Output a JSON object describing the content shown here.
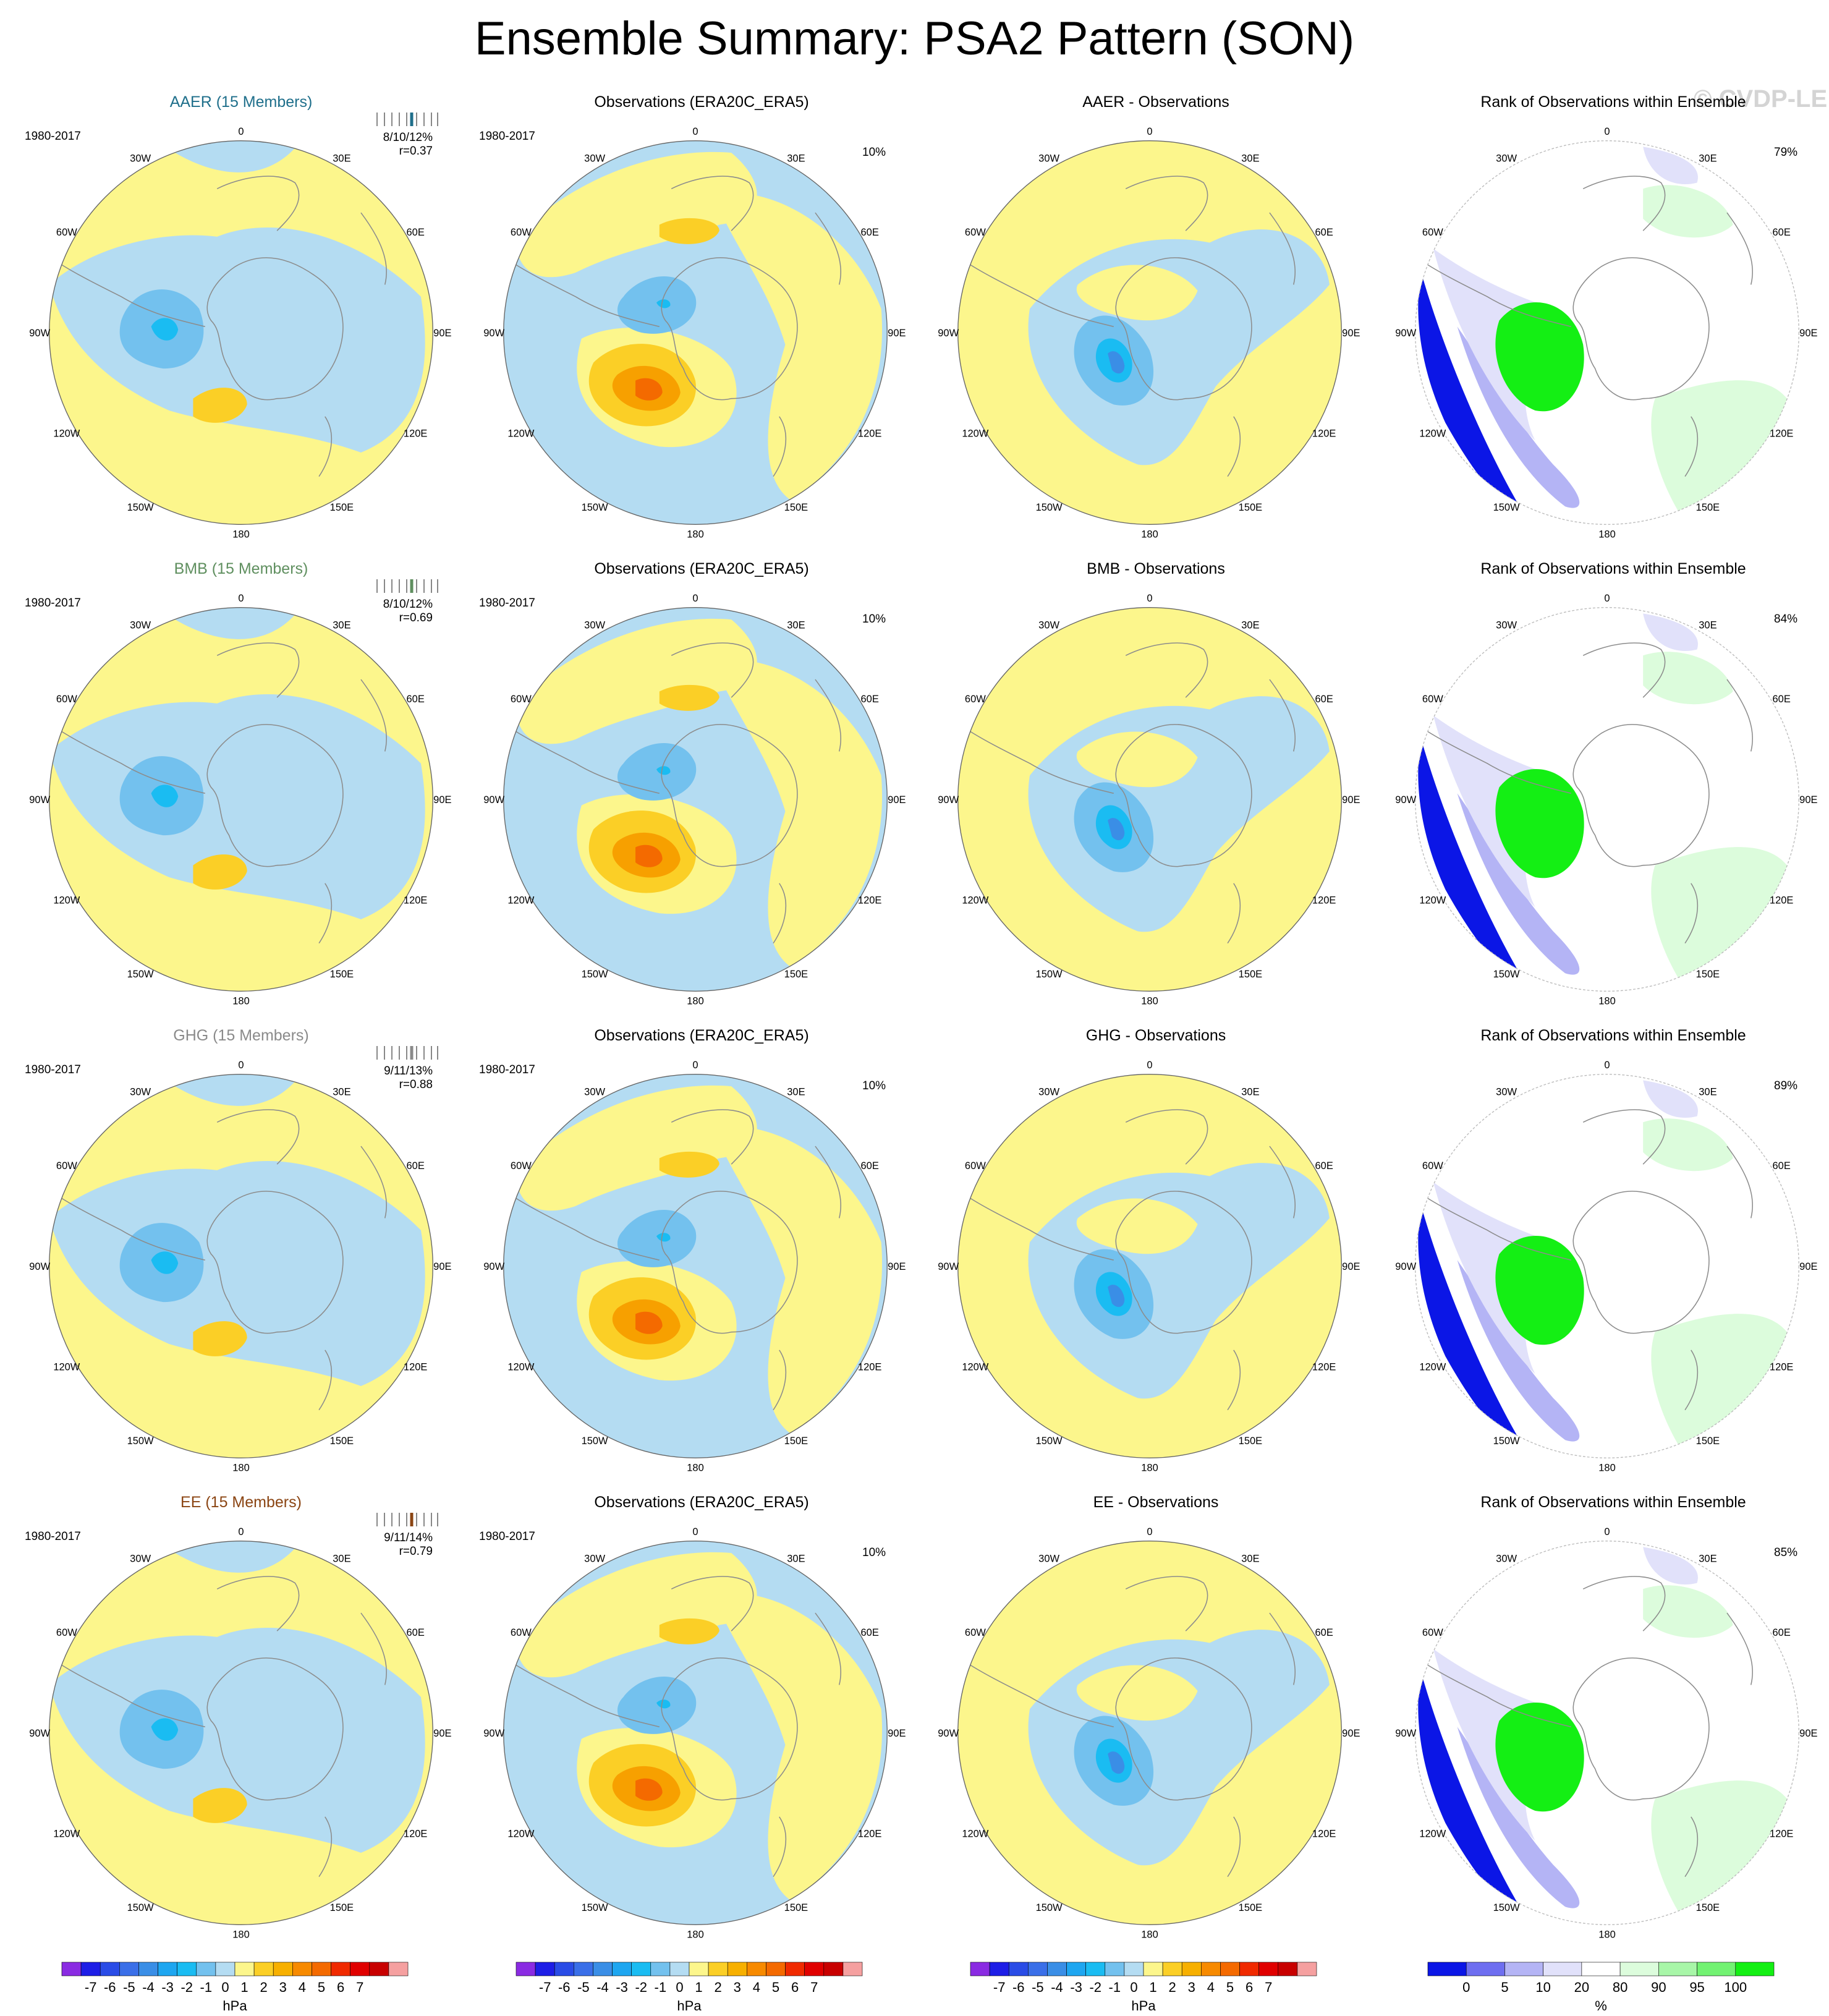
{
  "title": "Ensemble Summary: PSA2 Pattern (SON)",
  "watermark": "© CVDP-LE",
  "longitude_labels": [
    "0",
    "30E",
    "60E",
    "90E",
    "120E",
    "150E",
    "180",
    "150W",
    "120W",
    "90W",
    "60W",
    "30W"
  ],
  "colors": {
    "neg1": "#b4dcf2",
    "neg2": "#73c1ee",
    "neg3": "#1abcf2",
    "neg4": "#3a8ee6",
    "pos1": "#fcf68c",
    "pos2": "#fbcf26",
    "pos3": "#f7a000",
    "pos4": "#f46a00",
    "rank_lo1": "#0b16e6",
    "rank_lo2": "#6e6ef0",
    "rank_lo3": "#b4b4f5",
    "rank_lo4": "#e1e1fa",
    "rank_hi1": "#dcfcdc",
    "rank_hi2": "#a8f6a8",
    "rank_hi3": "#72f272",
    "rank_hi4": "#14ef14",
    "coast": "#8c8c8c"
  },
  "rows": [
    {
      "name": "AAER",
      "model_title": "AAER (15 Members)",
      "model_color": "#1f6f8b",
      "period": "1980-2017",
      "stats_pct": "8/10/12%",
      "stats_r": "r=0.37",
      "obs_title": "Observations (ERA20C_ERA5)",
      "obs_period": "1980-2017",
      "obs_pct": "10%",
      "diff_title": "AAER - Observations",
      "rank_title": "Rank of Observations within Ensemble",
      "rank_pct": "79%"
    },
    {
      "name": "BMB",
      "model_title": "BMB (15 Members)",
      "model_color": "#5f8f5f",
      "period": "1980-2017",
      "stats_pct": "8/10/12%",
      "stats_r": "r=0.69",
      "obs_title": "Observations (ERA20C_ERA5)",
      "obs_period": "1980-2017",
      "obs_pct": "10%",
      "diff_title": "BMB - Observations",
      "rank_title": "Rank of Observations within Ensemble",
      "rank_pct": "84%"
    },
    {
      "name": "GHG",
      "model_title": "GHG (15 Members)",
      "model_color": "#8a8a8a",
      "period": "1980-2017",
      "stats_pct": "9/11/13%",
      "stats_r": "r=0.88",
      "obs_title": "Observations (ERA20C_ERA5)",
      "obs_period": "1980-2017",
      "obs_pct": "10%",
      "diff_title": "GHG - Observations",
      "rank_title": "Rank of Observations within Ensemble",
      "rank_pct": "89%"
    },
    {
      "name": "EE",
      "model_title": "EE (15 Members)",
      "model_color": "#8b4513",
      "period": "1980-2017",
      "stats_pct": "9/11/14%",
      "stats_r": "r=0.79",
      "obs_title": "Observations (ERA20C_ERA5)",
      "obs_period": "1980-2017",
      "obs_pct": "10%",
      "diff_title": "EE - Observations",
      "rank_title": "Rank of Observations within Ensemble",
      "rank_pct": "85%"
    }
  ],
  "colorbar_hpa": {
    "unit": "hPa",
    "ticks": [
      "-7",
      "-6",
      "-5",
      "-4",
      "-3",
      "-2",
      "-1",
      "0",
      "1",
      "2",
      "3",
      "4",
      "5",
      "6",
      "7"
    ],
    "colors": [
      "#8a2be2",
      "#1e1ee6",
      "#2a4ce6",
      "#3a6fe8",
      "#3a8ee6",
      "#1ea6f0",
      "#1abcf2",
      "#73c1ee",
      "#b4dcf2",
      "#fcf68c",
      "#fbcf26",
      "#f7b000",
      "#f78a00",
      "#f46a00",
      "#f02a00",
      "#e00000",
      "#c80000",
      "#f5a0a0"
    ]
  },
  "colorbar_rank": {
    "unit": "%",
    "ticks": [
      "0",
      "5",
      "10",
      "20",
      "80",
      "90",
      "95",
      "100"
    ],
    "colors": [
      "#0b16e6",
      "#6e6ef0",
      "#b4b4f5",
      "#e1e1fa",
      "#ffffff",
      "#dcfcdc",
      "#a8f6a8",
      "#72f272",
      "#14ef14"
    ]
  }
}
